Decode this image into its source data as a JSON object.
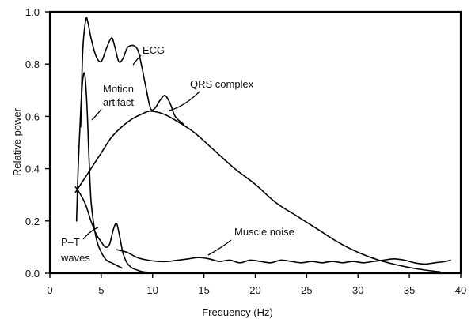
{
  "chart_data": {
    "type": "line",
    "xlabel": "Frequency (Hz)",
    "ylabel": "Relative power",
    "xlim": [
      0,
      40
    ],
    "ylim": [
      0,
      1.0
    ],
    "grid": false,
    "legend": "none",
    "x_ticks": [
      0,
      5,
      10,
      15,
      20,
      25,
      30,
      35,
      40
    ],
    "y_ticks": [
      0.0,
      0.2,
      0.4,
      0.6,
      0.8,
      1.0
    ],
    "x_tick_labels": [
      "0",
      "5",
      "10",
      "15",
      "20",
      "25",
      "30",
      "35",
      "40"
    ],
    "y_tick_labels": [
      "0.0",
      "0.2",
      "0.4",
      "0.6",
      "0.8",
      "1.0"
    ],
    "annotations": {
      "ecg": "ECG",
      "qrs": "QRS complex",
      "motion_line1": "Motion",
      "motion_line2": "artifact",
      "pt_line1": "P–T",
      "pt_line2": "waves",
      "muscle": "Muscle noise"
    },
    "series": [
      {
        "name": "ECG",
        "x": [
          3.0,
          3.2,
          3.5,
          3.7,
          4.0,
          4.5,
          5.0,
          5.5,
          6.0,
          6.3,
          6.7,
          7.1,
          7.5,
          7.8,
          8.2,
          8.6,
          9.0,
          9.4,
          9.8,
          10.2,
          10.7,
          11.2,
          11.7,
          12.2,
          13.0
        ],
        "y": [
          0.56,
          0.85,
          0.97,
          0.96,
          0.9,
          0.83,
          0.81,
          0.86,
          0.9,
          0.87,
          0.81,
          0.82,
          0.86,
          0.87,
          0.87,
          0.85,
          0.78,
          0.7,
          0.63,
          0.63,
          0.66,
          0.68,
          0.65,
          0.6,
          0.57
        ]
      },
      {
        "name": "QRS complex",
        "x": [
          2.5,
          3.0,
          4.0,
          5.0,
          6.0,
          7.0,
          8.0,
          9.0,
          9.8,
          11.0,
          12.0,
          14.0,
          16.0,
          18.0,
          20.0,
          22.0,
          24.0,
          26.0,
          28.0,
          30.0,
          32.0,
          34.0,
          36.0,
          38.0
        ],
        "y": [
          0.31,
          0.34,
          0.4,
          0.46,
          0.52,
          0.56,
          0.59,
          0.61,
          0.62,
          0.61,
          0.59,
          0.54,
          0.47,
          0.4,
          0.34,
          0.27,
          0.22,
          0.17,
          0.12,
          0.08,
          0.05,
          0.03,
          0.015,
          0.005
        ]
      },
      {
        "name": "Motion artifact",
        "x": [
          2.6,
          2.75,
          3.0,
          3.2,
          3.4,
          3.6,
          3.8,
          4.0,
          4.3,
          4.6,
          5.0,
          5.5,
          6.0,
          6.5,
          7.0
        ],
        "y": [
          0.2,
          0.4,
          0.62,
          0.74,
          0.76,
          0.65,
          0.45,
          0.28,
          0.18,
          0.12,
          0.08,
          0.05,
          0.04,
          0.03,
          0.02
        ]
      },
      {
        "name": "P–T waves",
        "x": [
          2.5,
          3.0,
          3.5,
          4.0,
          4.5,
          5.0,
          5.4,
          5.8,
          6.2,
          6.5,
          6.8,
          7.1,
          7.5,
          8.0,
          8.5,
          9.0,
          10.0,
          11.0
        ],
        "y": [
          0.33,
          0.3,
          0.26,
          0.2,
          0.15,
          0.12,
          0.1,
          0.11,
          0.17,
          0.19,
          0.14,
          0.08,
          0.04,
          0.02,
          0.012,
          0.006,
          0.002,
          0.0
        ]
      },
      {
        "name": "Muscle noise",
        "x": [
          6.5,
          7.5,
          8.5,
          9.5,
          10.5,
          11.5,
          12.5,
          13.5,
          14.5,
          15.5,
          16.5,
          17.5,
          18.5,
          19.5,
          20.5,
          21.5,
          22.5,
          23.5,
          24.5,
          25.5,
          26.5,
          27.5,
          28.5,
          29.5,
          30.5,
          31.5,
          32.5,
          33.5,
          34.5,
          35.5,
          36.5,
          37.5,
          38.5,
          39.0
        ],
        "y": [
          0.09,
          0.08,
          0.06,
          0.05,
          0.045,
          0.045,
          0.05,
          0.055,
          0.06,
          0.055,
          0.045,
          0.05,
          0.04,
          0.05,
          0.045,
          0.04,
          0.05,
          0.045,
          0.04,
          0.045,
          0.04,
          0.045,
          0.04,
          0.045,
          0.04,
          0.045,
          0.05,
          0.055,
          0.05,
          0.04,
          0.035,
          0.04,
          0.045,
          0.05
        ]
      }
    ]
  }
}
